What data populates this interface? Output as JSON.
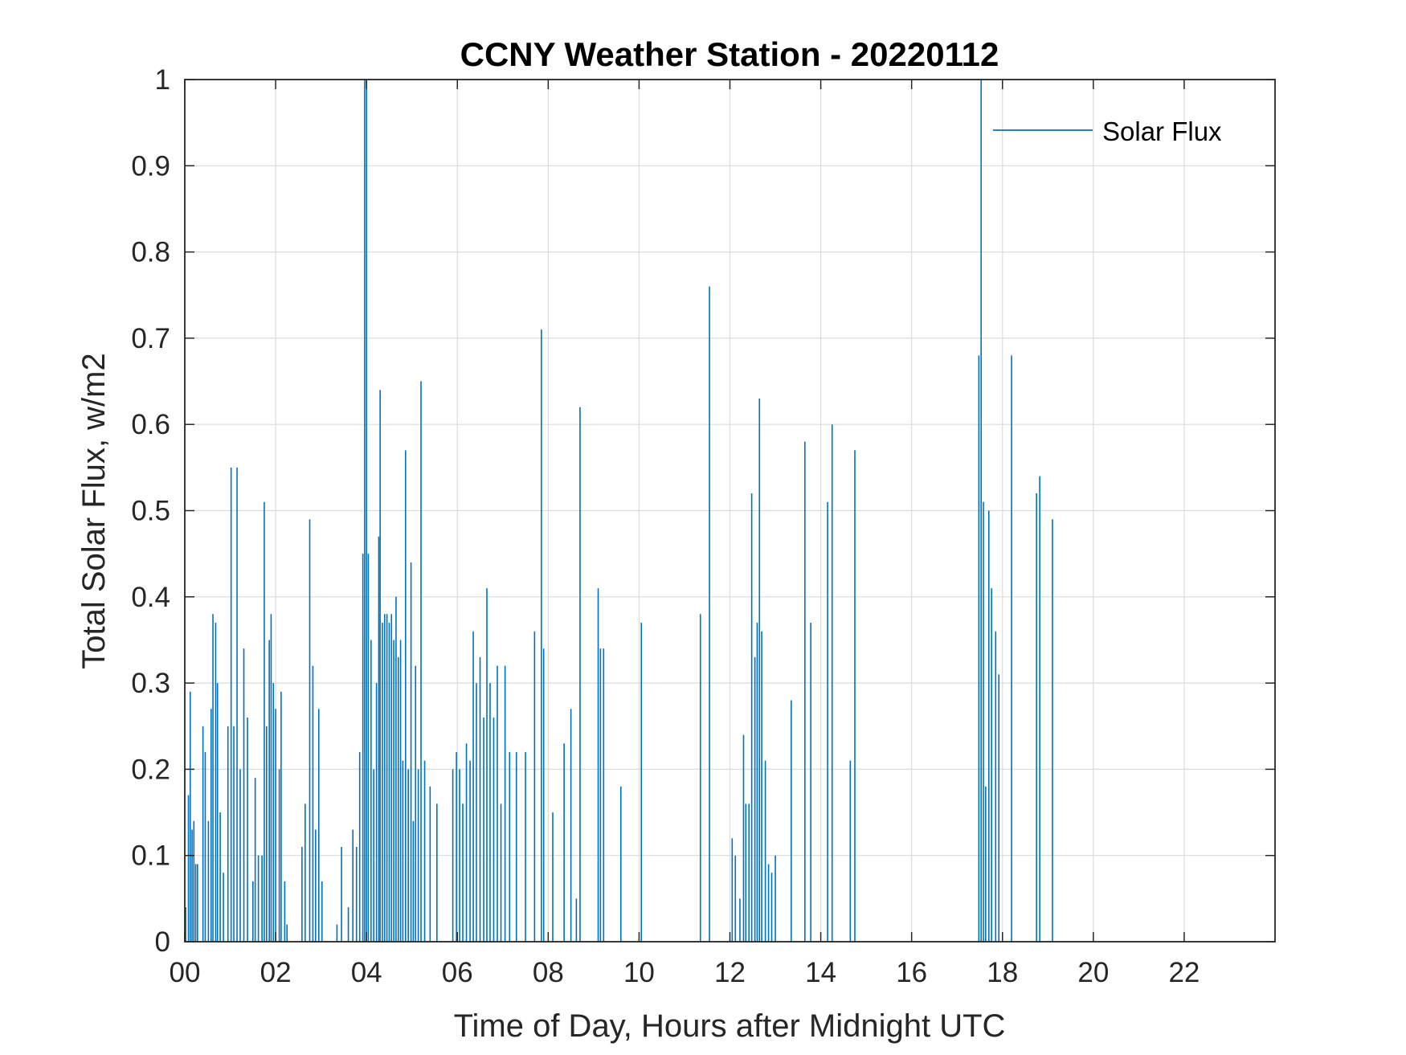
{
  "chart_data": {
    "type": "line",
    "title": "CCNY Weather Station - 20220112",
    "xlabel": "Time of Day, Hours after Midnight UTC",
    "ylabel": "Total Solar Flux, w/m2",
    "xlim": [
      0,
      24
    ],
    "ylim": [
      0,
      1
    ],
    "grid": true,
    "legend_position": "top-right",
    "x_ticks": [
      0,
      2,
      4,
      6,
      8,
      10,
      12,
      14,
      16,
      18,
      20,
      22
    ],
    "x_tick_labels": [
      "00",
      "02",
      "04",
      "06",
      "08",
      "10",
      "12",
      "14",
      "16",
      "18",
      "20",
      "22"
    ],
    "y_ticks": [
      0,
      0.1,
      0.2,
      0.3,
      0.4,
      0.5,
      0.6,
      0.7,
      0.8,
      0.9,
      1
    ],
    "y_tick_labels": [
      "0",
      "0.1",
      "0.2",
      "0.3",
      "0.4",
      "0.5",
      "0.6",
      "0.7",
      "0.8",
      "0.9",
      "1"
    ],
    "series": [
      {
        "name": "Solar Flux",
        "color": "#0072BD",
        "spikes": [
          [
            0.02,
            0.04
          ],
          [
            0.08,
            0.17
          ],
          [
            0.12,
            0.29
          ],
          [
            0.16,
            0.13
          ],
          [
            0.2,
            0.14
          ],
          [
            0.24,
            0.09
          ],
          [
            0.28,
            0.09
          ],
          [
            0.4,
            0.25
          ],
          [
            0.45,
            0.22
          ],
          [
            0.52,
            0.14
          ],
          [
            0.58,
            0.27
          ],
          [
            0.62,
            0.38
          ],
          [
            0.68,
            0.37
          ],
          [
            0.72,
            0.3
          ],
          [
            0.78,
            0.15
          ],
          [
            0.85,
            0.08
          ],
          [
            0.95,
            0.25
          ],
          [
            1.02,
            0.55
          ],
          [
            1.08,
            0.25
          ],
          [
            1.15,
            0.55
          ],
          [
            1.22,
            0.2
          ],
          [
            1.3,
            0.34
          ],
          [
            1.38,
            0.26
          ],
          [
            1.5,
            0.07
          ],
          [
            1.55,
            0.19
          ],
          [
            1.62,
            0.1
          ],
          [
            1.7,
            0.1
          ],
          [
            1.75,
            0.51
          ],
          [
            1.8,
            0.25
          ],
          [
            1.86,
            0.35
          ],
          [
            1.9,
            0.38
          ],
          [
            1.95,
            0.3
          ],
          [
            2.0,
            0.27
          ],
          [
            2.08,
            0.2
          ],
          [
            2.12,
            0.29
          ],
          [
            2.2,
            0.07
          ],
          [
            2.25,
            0.02
          ],
          [
            2.58,
            0.11
          ],
          [
            2.65,
            0.16
          ],
          [
            2.75,
            0.49
          ],
          [
            2.82,
            0.32
          ],
          [
            2.88,
            0.13
          ],
          [
            2.95,
            0.27
          ],
          [
            3.02,
            0.07
          ],
          [
            3.35,
            0.02
          ],
          [
            3.45,
            0.11
          ],
          [
            3.6,
            0.04
          ],
          [
            3.7,
            0.13
          ],
          [
            3.78,
            0.11
          ],
          [
            3.85,
            0.22
          ],
          [
            3.92,
            0.45
          ],
          [
            3.96,
            1.0
          ],
          [
            4.0,
            1.0
          ],
          [
            4.04,
            0.45
          ],
          [
            4.1,
            0.35
          ],
          [
            4.16,
            0.2
          ],
          [
            4.22,
            0.3
          ],
          [
            4.27,
            0.47
          ],
          [
            4.3,
            0.64
          ],
          [
            4.35,
            0.37
          ],
          [
            4.4,
            0.38
          ],
          [
            4.45,
            0.38
          ],
          [
            4.5,
            0.37
          ],
          [
            4.55,
            0.38
          ],
          [
            4.6,
            0.35
          ],
          [
            4.65,
            0.4
          ],
          [
            4.7,
            0.33
          ],
          [
            4.75,
            0.35
          ],
          [
            4.8,
            0.21
          ],
          [
            4.86,
            0.57
          ],
          [
            4.92,
            0.2
          ],
          [
            4.98,
            0.44
          ],
          [
            5.03,
            0.14
          ],
          [
            5.08,
            0.32
          ],
          [
            5.14,
            0.2
          ],
          [
            5.2,
            0.65
          ],
          [
            5.28,
            0.21
          ],
          [
            5.4,
            0.18
          ],
          [
            5.55,
            0.16
          ],
          [
            5.9,
            0.2
          ],
          [
            5.98,
            0.22
          ],
          [
            6.05,
            0.2
          ],
          [
            6.12,
            0.16
          ],
          [
            6.2,
            0.23
          ],
          [
            6.28,
            0.21
          ],
          [
            6.35,
            0.36
          ],
          [
            6.42,
            0.3
          ],
          [
            6.5,
            0.33
          ],
          [
            6.58,
            0.26
          ],
          [
            6.65,
            0.41
          ],
          [
            6.72,
            0.3
          ],
          [
            6.8,
            0.26
          ],
          [
            6.88,
            0.32
          ],
          [
            6.96,
            0.16
          ],
          [
            7.05,
            0.32
          ],
          [
            7.15,
            0.22
          ],
          [
            7.3,
            0.22
          ],
          [
            7.5,
            0.22
          ],
          [
            7.7,
            0.36
          ],
          [
            7.85,
            0.71
          ],
          [
            7.9,
            0.34
          ],
          [
            8.1,
            0.15
          ],
          [
            8.35,
            0.23
          ],
          [
            8.5,
            0.27
          ],
          [
            8.62,
            0.05
          ],
          [
            8.7,
            0.62
          ],
          [
            9.1,
            0.41
          ],
          [
            9.15,
            0.34
          ],
          [
            9.22,
            0.34
          ],
          [
            9.6,
            0.18
          ],
          [
            10.05,
            0.37
          ],
          [
            11.35,
            0.38
          ],
          [
            11.55,
            0.76
          ],
          [
            12.05,
            0.12
          ],
          [
            12.12,
            0.1
          ],
          [
            12.22,
            0.05
          ],
          [
            12.3,
            0.24
          ],
          [
            12.35,
            0.16
          ],
          [
            12.42,
            0.16
          ],
          [
            12.48,
            0.52
          ],
          [
            12.55,
            0.33
          ],
          [
            12.6,
            0.37
          ],
          [
            12.65,
            0.63
          ],
          [
            12.7,
            0.36
          ],
          [
            12.78,
            0.21
          ],
          [
            12.85,
            0.09
          ],
          [
            12.92,
            0.08
          ],
          [
            13.0,
            0.1
          ],
          [
            13.35,
            0.28
          ],
          [
            13.65,
            0.58
          ],
          [
            13.78,
            0.37
          ],
          [
            14.15,
            0.51
          ],
          [
            14.25,
            0.6
          ],
          [
            14.65,
            0.21
          ],
          [
            14.75,
            0.57
          ],
          [
            17.48,
            0.68
          ],
          [
            17.53,
            1.0
          ],
          [
            17.58,
            0.51
          ],
          [
            17.63,
            0.18
          ],
          [
            17.7,
            0.5
          ],
          [
            17.76,
            0.41
          ],
          [
            17.85,
            0.36
          ],
          [
            17.92,
            0.31
          ],
          [
            18.2,
            0.68
          ],
          [
            18.75,
            0.52
          ],
          [
            18.82,
            0.54
          ],
          [
            19.1,
            0.49
          ]
        ]
      }
    ]
  }
}
